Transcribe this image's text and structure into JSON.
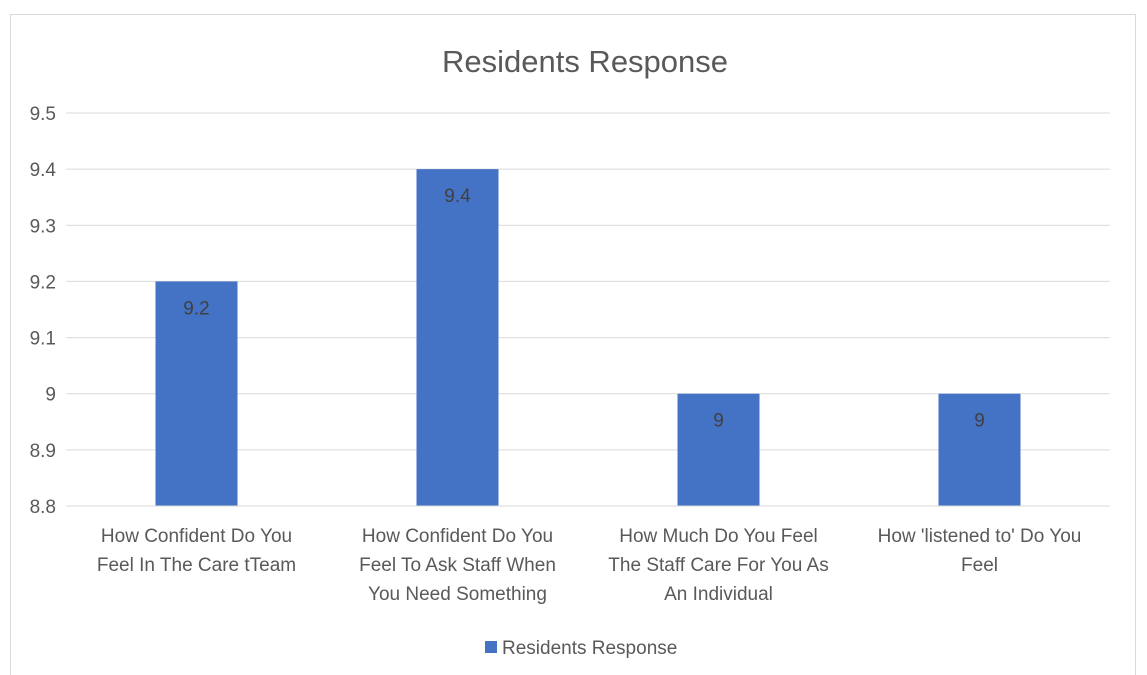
{
  "chart_data": {
    "type": "bar",
    "title": "Residents Response",
    "categories": [
      [
        "How Confident Do You",
        "Feel In The Care tTeam"
      ],
      [
        "How Confident Do You",
        "Feel To Ask Staff When",
        "You Need Something"
      ],
      [
        "How Much Do You Feel",
        "The Staff Care For You As",
        "An Individual"
      ],
      [
        "How 'listened to' Do You",
        "Feel"
      ]
    ],
    "series": [
      {
        "name": "Residents Response",
        "values": [
          9.2,
          9.4,
          9,
          9
        ],
        "labels": [
          "9.2",
          "9.4",
          "9",
          "9"
        ],
        "color": "#4472c4"
      }
    ],
    "ylim": [
      8.8,
      9.5
    ],
    "yticks": [
      "8.8",
      "8.9",
      "9",
      "9.1",
      "9.2",
      "9.3",
      "9.4",
      "9.5"
    ],
    "grid": true,
    "legend_position": "bottom",
    "xlabel": "",
    "ylabel": ""
  }
}
